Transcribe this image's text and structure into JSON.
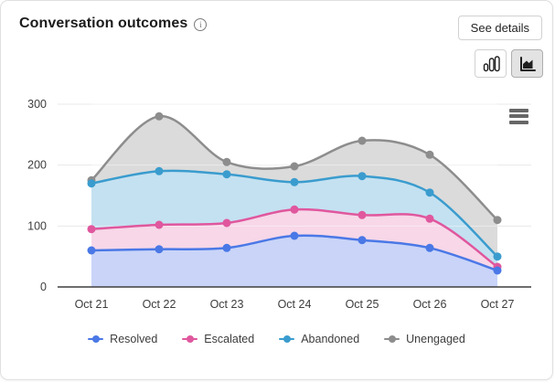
{
  "card": {
    "title": "Conversation outcomes"
  },
  "icons": {
    "info_glyph": "i"
  },
  "header": {
    "see_details_label": "See details"
  },
  "toolbar": {
    "column_chart_toggle": "column-chart",
    "area_chart_toggle": "area-chart",
    "selected_toggle": "area-chart"
  },
  "chart_data": {
    "type": "area",
    "title": "Conversation outcomes",
    "categories": [
      "Oct 21",
      "Oct 22",
      "Oct 23",
      "Oct 24",
      "Oct 25",
      "Oct 26",
      "Oct 27"
    ],
    "series": [
      {
        "name": "Resolved",
        "color": "#4a78e6",
        "fill": "#c9d4f8",
        "values": [
          60,
          62,
          64,
          84,
          77,
          64,
          27
        ]
      },
      {
        "name": "Escalated",
        "color": "#e0579e",
        "fill": "#f7d7e8",
        "values": [
          95,
          102,
          105,
          127,
          118,
          112,
          33
        ]
      },
      {
        "name": "Abandoned",
        "color": "#3a9cce",
        "fill": "#c4e1f1",
        "values": [
          170,
          190,
          185,
          172,
          182,
          155,
          50
        ]
      },
      {
        "name": "Unengaged",
        "color": "#8d8d8d",
        "fill": "#dbdbdb",
        "values": [
          175,
          280,
          205,
          198,
          240,
          217,
          110
        ]
      }
    ],
    "xlabel": "",
    "ylabel": "",
    "ylim": [
      0,
      300
    ],
    "yticks": [
      0,
      100,
      200,
      300
    ],
    "grid": true,
    "legend_position": "bottom",
    "axis_color": "#3f3f3f",
    "grid_color": "#e8e8e8",
    "tick_label_color": "#3d3d3d"
  }
}
